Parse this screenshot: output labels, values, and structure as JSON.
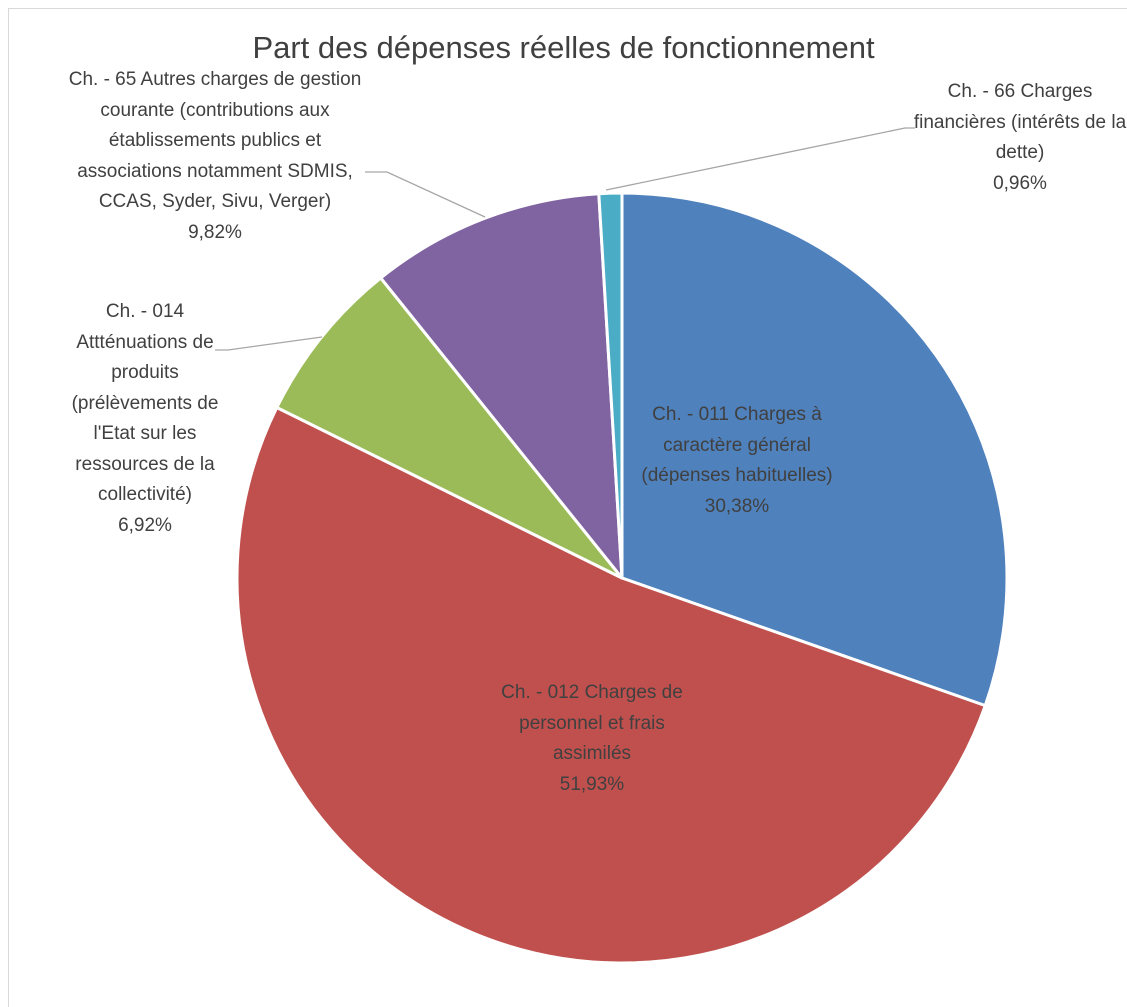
{
  "chart_data": {
    "type": "pie",
    "title": "Part des dépenses réelles de fonctionnement",
    "categories": [
      "Ch. - 011 Charges à caractère général (dépenses habituelles)",
      "Ch. - 012 Charges de personnel et frais assimilés",
      "Ch. - 014 Attténuations de produits (prélèvements de l'Etat sur les ressources de la collectivité)",
      "Ch. - 65 Autres charges de gestion courante (contributions aux établissements publics et associations notamment SDMIS, CCAS, Syder, Sivu, Verger)",
      "Ch. - 66 Charges financières (intérêts de la dette)"
    ],
    "values": [
      30.38,
      51.93,
      6.92,
      9.82,
      0.96
    ],
    "value_labels": [
      "30,38%",
      "51,93%",
      "6,92%",
      "9,82%",
      "0,96%"
    ],
    "colors": [
      "#4f81bd",
      "#c0504d",
      "#9bbb59",
      "#8064a2",
      "#4bacc6"
    ]
  }
}
